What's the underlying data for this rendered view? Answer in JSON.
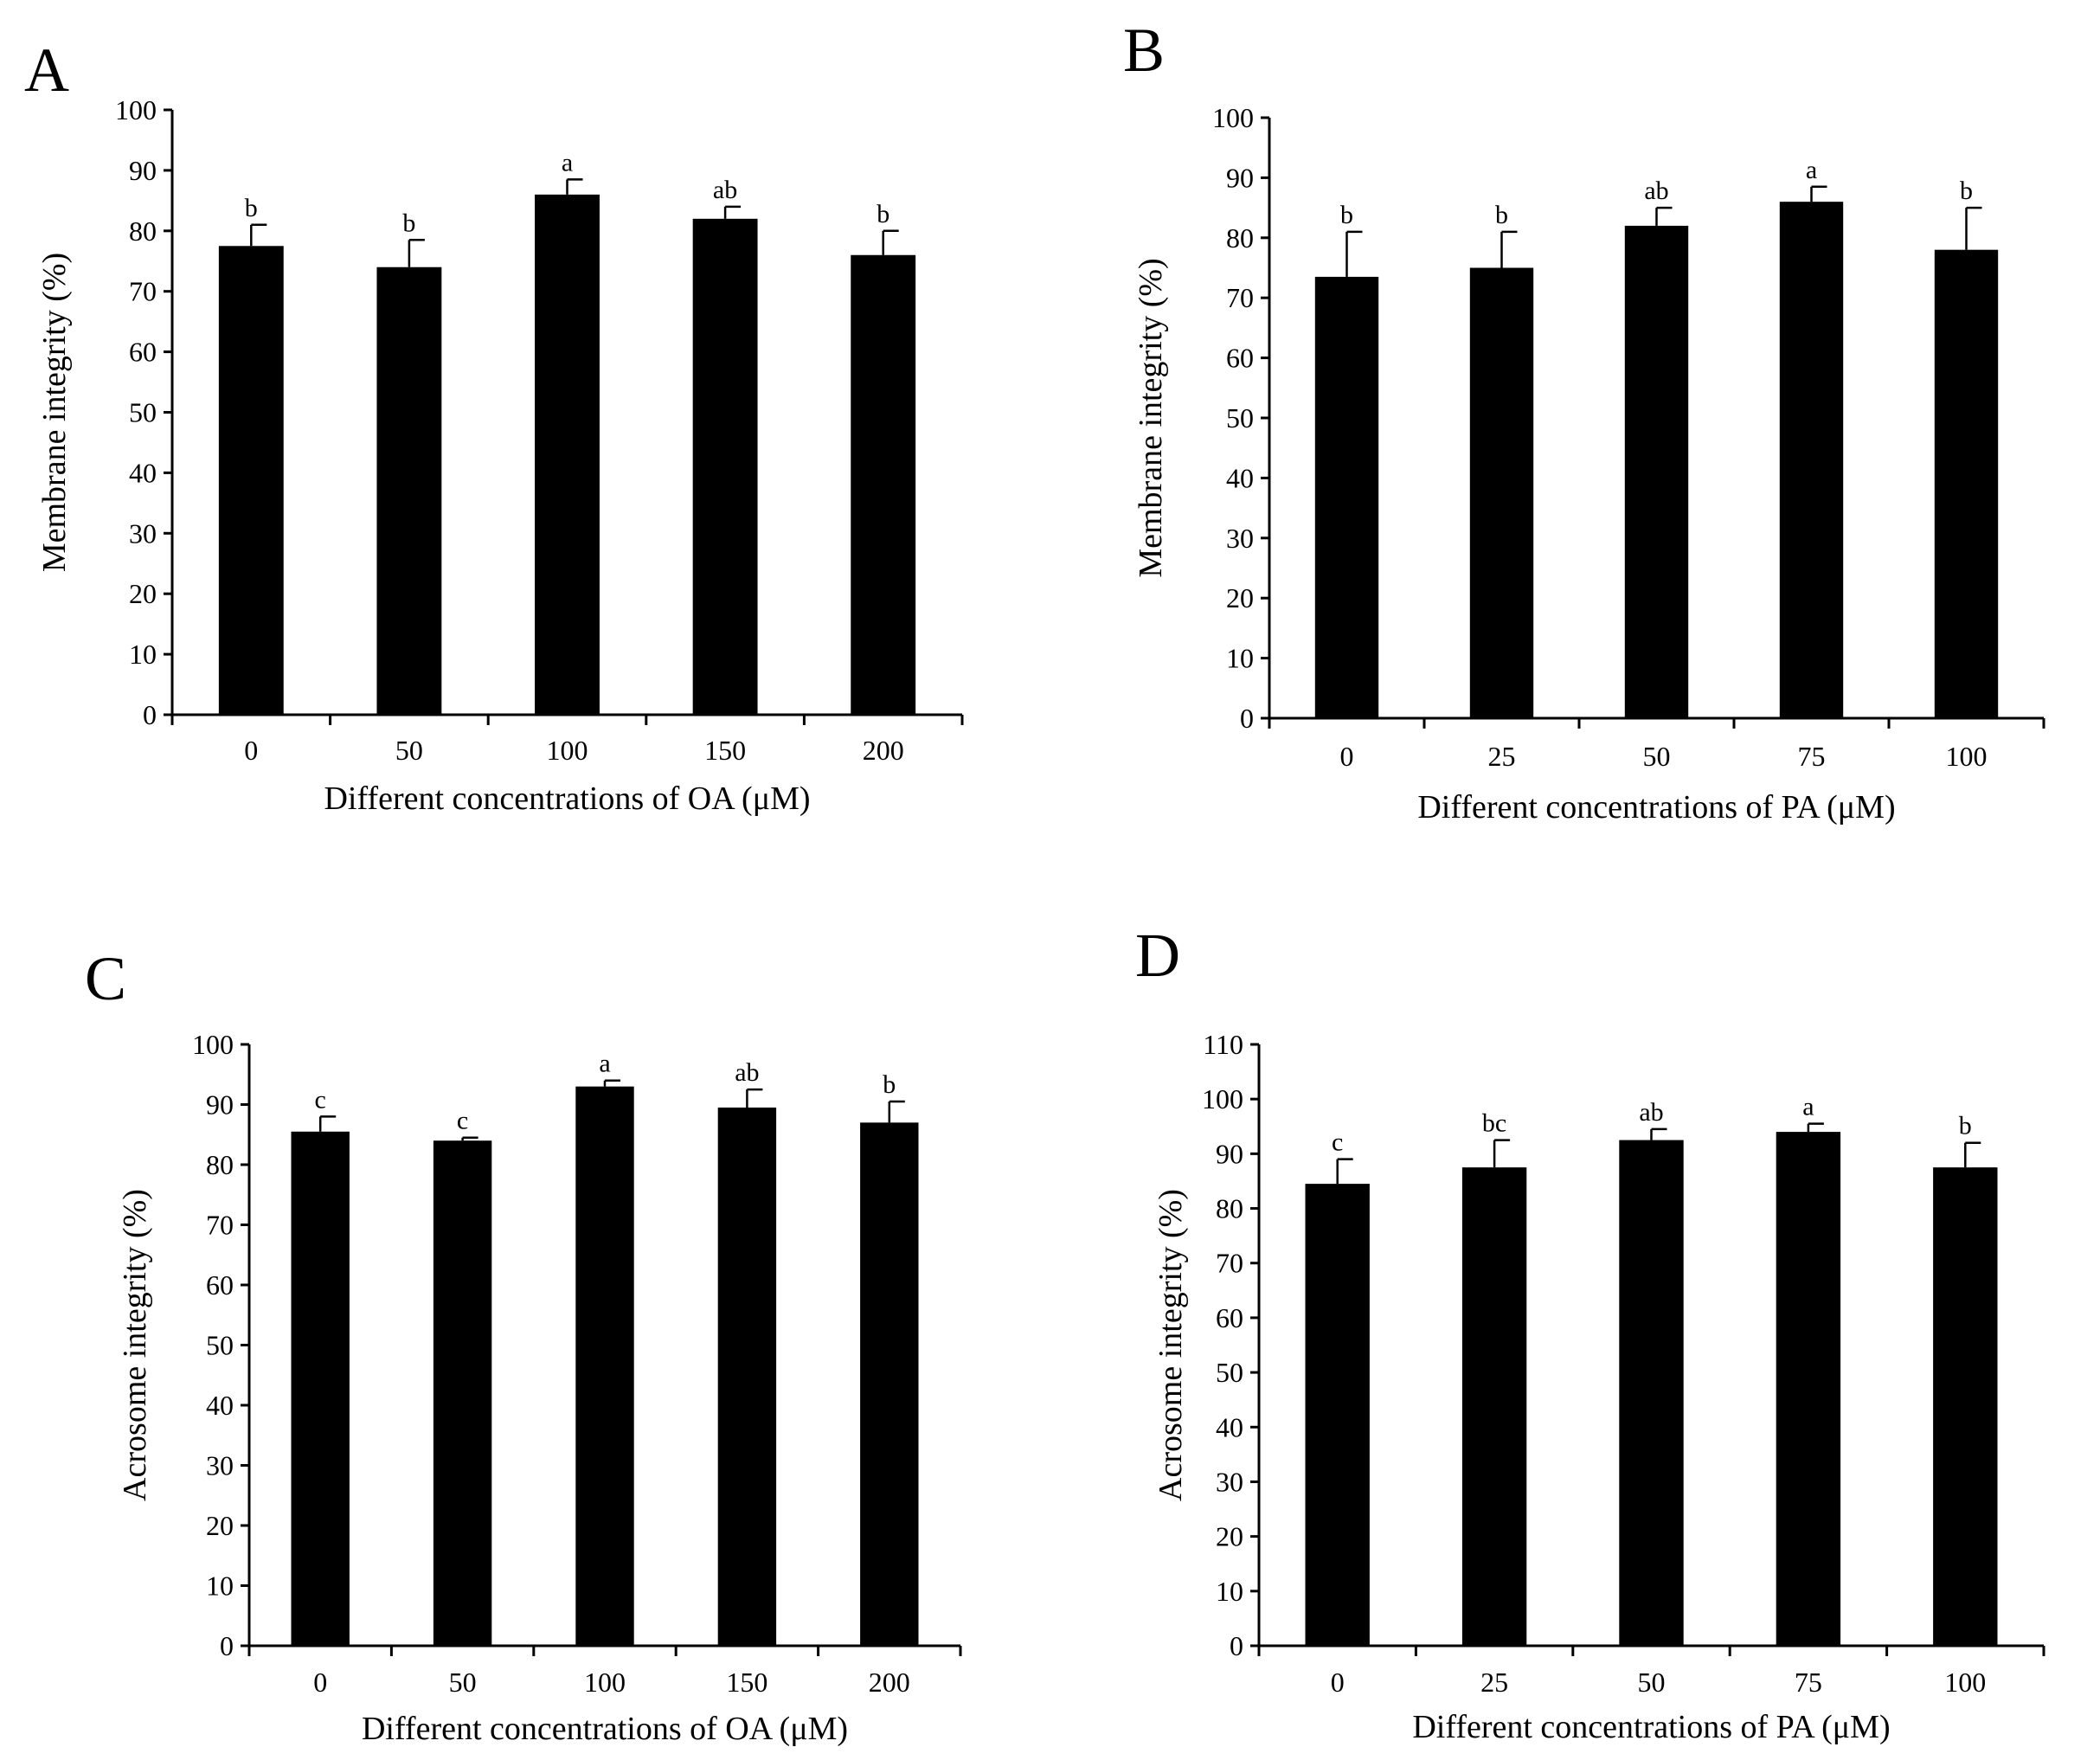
{
  "chart_data": [
    {
      "panel": "A",
      "type": "bar",
      "categories": [
        "0",
        "50",
        "100",
        "150",
        "200"
      ],
      "values": [
        77.5,
        74,
        86,
        82,
        76
      ],
      "errors": [
        3.5,
        4.5,
        2.5,
        2,
        4
      ],
      "significance": [
        "b",
        "b",
        "a",
        "ab",
        "b"
      ],
      "xlabel": "Different concentrations of OA (μM)",
      "ylabel": "Membrane integrity (%)",
      "ylim": [
        0,
        100
      ],
      "yticks": [
        0,
        10,
        20,
        30,
        40,
        50,
        60,
        70,
        80,
        90,
        100
      ]
    },
    {
      "panel": "B",
      "type": "bar",
      "categories": [
        "0",
        "25",
        "50",
        "75",
        "100"
      ],
      "values": [
        73.5,
        75,
        82,
        86,
        78
      ],
      "errors": [
        7.5,
        6,
        3,
        2.5,
        7
      ],
      "significance": [
        "b",
        "b",
        "ab",
        "a",
        "b"
      ],
      "xlabel": "Different concentrations of PA (μM)",
      "ylabel": "Membrane integrity (%)",
      "ylim": [
        0,
        100
      ],
      "yticks": [
        0,
        10,
        20,
        30,
        40,
        50,
        60,
        70,
        80,
        90,
        100
      ]
    },
    {
      "panel": "C",
      "type": "bar",
      "categories": [
        "0",
        "50",
        "100",
        "150",
        "200"
      ],
      "values": [
        85.5,
        84,
        93,
        89.5,
        87
      ],
      "errors": [
        2.5,
        0.5,
        1,
        3,
        3.5
      ],
      "significance": [
        "c",
        "c",
        "a",
        "ab",
        "b"
      ],
      "xlabel": "Different concentrations of OA (μM)",
      "ylabel": "Acrosome integrity (%)",
      "ylim": [
        0,
        100
      ],
      "yticks": [
        0,
        10,
        20,
        30,
        40,
        50,
        60,
        70,
        80,
        90,
        100
      ]
    },
    {
      "panel": "D",
      "type": "bar",
      "categories": [
        "0",
        "25",
        "50",
        "75",
        "100"
      ],
      "values": [
        84.5,
        87.5,
        92.5,
        94,
        87.5
      ],
      "errors": [
        4.5,
        5,
        2,
        1.5,
        4.5
      ],
      "significance": [
        "c",
        "bc",
        "ab",
        "a",
        "b"
      ],
      "xlabel": "Different concentrations of PA (μM)",
      "ylabel": "Acrosome integrity (%)",
      "ylim": [
        0,
        110
      ],
      "yticks": [
        0,
        10,
        20,
        30,
        40,
        50,
        60,
        70,
        80,
        90,
        100,
        110
      ]
    }
  ]
}
